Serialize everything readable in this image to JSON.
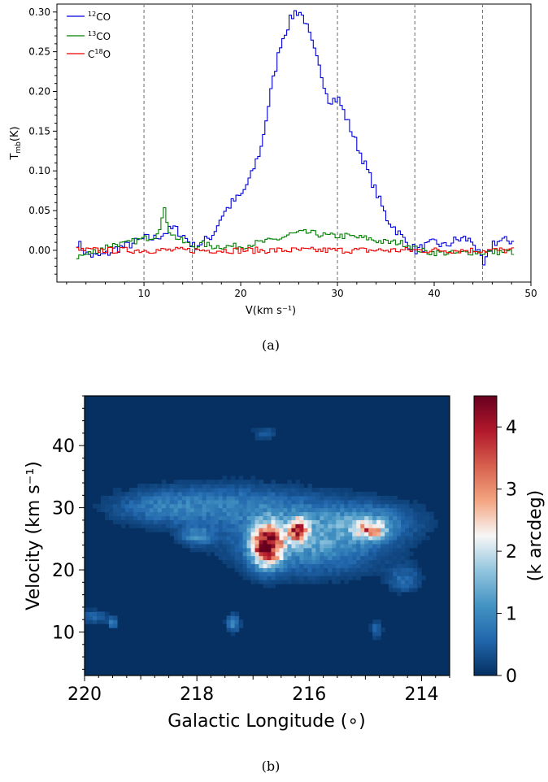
{
  "figure": {
    "caption_a": "(a)",
    "caption_b": "(b)"
  },
  "chart_data": [
    {
      "type": "line",
      "panel": "a",
      "xlabel": "V(km s⁻¹)",
      "ylabel": "T_mb(K)",
      "xlim": [
        1,
        50
      ],
      "ylim": [
        -0.04,
        0.31
      ],
      "x_ticks": [
        10,
        20,
        30,
        40,
        50
      ],
      "y_ticks": [
        0.0,
        0.05,
        0.1,
        0.15,
        0.2,
        0.25,
        0.3
      ],
      "y_tick_labels": [
        "0.00",
        "0.05",
        "0.10",
        "0.15",
        "0.20",
        "0.25",
        "0.30"
      ],
      "vertical_dashed_lines": [
        10,
        15,
        30,
        38,
        45
      ],
      "legend_position": "top-left",
      "colors": {
        "12CO": "#0000dd",
        "13CO": "#008000",
        "C18O": "#ee0000",
        "vlines": "#777777"
      },
      "series": [
        {
          "name": "12CO",
          "legend_label": "¹²CO",
          "step": 0.25,
          "x": [
            3,
            4,
            5,
            6,
            7,
            8,
            9,
            10,
            11,
            12,
            13,
            14,
            15,
            16,
            17,
            18,
            19,
            20,
            21,
            22,
            23,
            24,
            25,
            25.5,
            26,
            26.5,
            27,
            28,
            29,
            30,
            31,
            32,
            33,
            34,
            35,
            36,
            37,
            38,
            39,
            40,
            41,
            42,
            43,
            44,
            45,
            46,
            47,
            48
          ],
          "y": [
            0.01,
            -0.005,
            -0.008,
            -0.005,
            0.002,
            0.005,
            0.01,
            0.015,
            0.015,
            0.022,
            0.028,
            0.018,
            0.005,
            0.01,
            0.02,
            0.045,
            0.06,
            0.07,
            0.095,
            0.13,
            0.2,
            0.26,
            0.29,
            0.3,
            0.3,
            0.29,
            0.27,
            0.23,
            0.19,
            0.19,
            0.16,
            0.13,
            0.1,
            0.07,
            0.04,
            0.025,
            0.01,
            0.0,
            0.005,
            0.01,
            0.005,
            0.012,
            0.015,
            0.01,
            -0.02,
            0.01,
            0.012,
            0.012
          ]
        },
        {
          "name": "13CO",
          "legend_label": "¹³CO",
          "step": 0.25,
          "x": [
            3,
            4,
            5,
            6,
            7,
            8,
            9,
            10,
            11,
            11.5,
            12,
            12.5,
            13,
            14,
            15,
            16,
            17,
            18,
            19,
            20,
            21,
            22,
            23,
            24,
            25,
            26,
            27,
            28,
            29,
            30,
            31,
            32,
            33,
            34,
            35,
            36,
            37,
            38,
            39,
            40,
            41,
            42,
            43,
            44,
            45,
            46,
            47,
            48
          ],
          "y": [
            -0.008,
            -0.005,
            0.0,
            0.005,
            0.008,
            0.008,
            0.012,
            0.015,
            0.018,
            0.03,
            0.05,
            0.025,
            0.018,
            0.01,
            0.005,
            0.008,
            0.005,
            0.005,
            0.005,
            0.005,
            0.008,
            0.01,
            0.012,
            0.015,
            0.02,
            0.022,
            0.022,
            0.02,
            0.018,
            0.018,
            0.018,
            0.016,
            0.015,
            0.012,
            0.01,
            0.01,
            0.008,
            0.002,
            -0.002,
            -0.003,
            -0.003,
            -0.004,
            -0.003,
            -0.002,
            -0.003,
            -0.002,
            -0.002,
            -0.002
          ]
        },
        {
          "name": "C18O",
          "legend_label": "C¹⁸O",
          "step": 0.25,
          "x": [
            3,
            48
          ],
          "y": [
            0.0,
            0.0
          ]
        }
      ]
    },
    {
      "type": "heatmap",
      "panel": "b",
      "xlabel": "Galactic Longitude (∘)",
      "ylabel": "Velocity (km s⁻¹)",
      "xlim": [
        220,
        213.5
      ],
      "ylim": [
        3,
        48
      ],
      "x_ticks": [
        220,
        218,
        216,
        214
      ],
      "y_ticks": [
        10,
        20,
        30,
        40
      ],
      "colorbar_label": "(k arcdeg)",
      "colorbar_ticks": [
        0,
        1,
        2,
        3,
        4
      ],
      "colorbar_range": [
        0,
        4.5
      ],
      "colormap": [
        "#053061",
        "#2166ac",
        "#4393c3",
        "#92c5de",
        "#f7f7f7",
        "#f4a582",
        "#d6604d",
        "#b2182b",
        "#67001f"
      ],
      "emission_regions": [
        {
          "name": "main-core",
          "l_center": 216.75,
          "v_center": 24.0,
          "l_sigma": 0.18,
          "v_sigma": 2.2,
          "peak": 4.3
        },
        {
          "name": "core-2",
          "l_center": 216.2,
          "v_center": 26.5,
          "l_sigma": 0.12,
          "v_sigma": 1.3,
          "peak": 2.8
        },
        {
          "name": "core-3",
          "l_center": 214.9,
          "v_center": 26.5,
          "l_sigma": 0.18,
          "v_sigma": 1.0,
          "peak": 2.3
        },
        {
          "name": "plateau",
          "l_center": 216.0,
          "v_center": 25.0,
          "l_sigma": 0.9,
          "v_sigma": 3.5,
          "peak": 1.3
        },
        {
          "name": "band-ridge",
          "l_center": 217.5,
          "v_center": 30.5,
          "l_sigma": 1.0,
          "v_sigma": 2.3,
          "peak": 0.75
        },
        {
          "name": "band-west",
          "l_center": 218.7,
          "v_center": 30.0,
          "l_sigma": 0.6,
          "v_sigma": 1.8,
          "peak": 0.5
        },
        {
          "name": "band-east",
          "l_center": 214.9,
          "v_center": 28.0,
          "l_sigma": 0.6,
          "v_sigma": 2.0,
          "peak": 0.7
        },
        {
          "name": "tail-east",
          "l_center": 214.3,
          "v_center": 18.5,
          "l_sigma": 0.2,
          "v_sigma": 1.5,
          "peak": 0.6
        },
        {
          "name": "blob-218",
          "l_center": 218.0,
          "v_center": 25.5,
          "l_sigma": 0.2,
          "v_sigma": 1.0,
          "peak": 0.9
        },
        {
          "name": "blob-217.4",
          "l_center": 217.35,
          "v_center": 11.5,
          "l_sigma": 0.08,
          "v_sigma": 0.9,
          "peak": 1.0
        },
        {
          "name": "blob-219.8",
          "l_center": 219.85,
          "v_center": 12.5,
          "l_sigma": 0.2,
          "v_sigma": 0.7,
          "peak": 0.6
        },
        {
          "name": "blob-219.5",
          "l_center": 219.5,
          "v_center": 11.5,
          "l_sigma": 0.05,
          "v_sigma": 0.6,
          "peak": 0.8
        },
        {
          "name": "blob-214.8",
          "l_center": 214.8,
          "v_center": 10.5,
          "l_sigma": 0.07,
          "v_sigma": 1.0,
          "peak": 0.6
        },
        {
          "name": "blob-216.8-high",
          "l_center": 216.8,
          "v_center": 42.0,
          "l_sigma": 0.15,
          "v_sigma": 0.8,
          "peak": 0.4
        }
      ]
    }
  ]
}
